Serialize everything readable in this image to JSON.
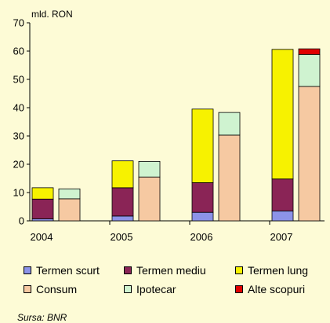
{
  "chart_data": {
    "type": "bar",
    "unit_label": "mld. RON",
    "categories": [
      "2004",
      "2005",
      "2006",
      "2007"
    ],
    "stacks": [
      {
        "group": "term",
        "series": [
          {
            "name": "Termen scurt",
            "color": "#8c93e8",
            "values": [
              0.7,
              1.7,
              3.0,
              3.5
            ]
          },
          {
            "name": "Termen mediu",
            "color": "#8a2456",
            "values": [
              7.0,
              10.0,
              10.5,
              11.3
            ]
          },
          {
            "name": "Termen lung",
            "color": "#f7f200",
            "values": [
              4.0,
              9.5,
              26.0,
              45.8
            ]
          }
        ]
      },
      {
        "group": "purpose",
        "series": [
          {
            "name": "Consum",
            "color": "#f6c9a2",
            "values": [
              7.8,
              15.5,
              30.3,
              47.5
            ]
          },
          {
            "name": "Ipotecar",
            "color": "#cff3d0",
            "values": [
              3.5,
              5.5,
              8.0,
              11.3
            ]
          },
          {
            "name": "Alte scopuri",
            "color": "#e00000",
            "values": [
              0.0,
              0.0,
              0.0,
              2.0
            ]
          }
        ]
      }
    ],
    "yticks": [
      0,
      10,
      20,
      30,
      40,
      50,
      60,
      70
    ],
    "ylim": [
      0,
      70
    ],
    "grid": false,
    "legend_position": "bottom",
    "legend": [
      "Termen scurt",
      "Termen mediu",
      "Termen lung",
      "Consum",
      "Ipotecar",
      "Alte scopuri"
    ]
  },
  "source_text": "Sursa: BNR"
}
